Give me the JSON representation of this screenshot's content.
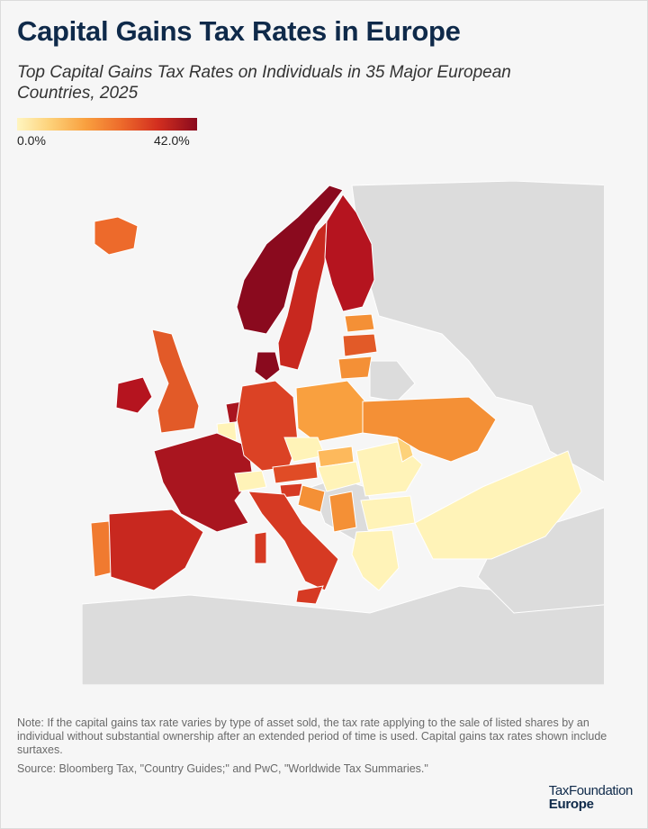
{
  "header": {
    "title": "Capital Gains Tax Rates in Europe",
    "subtitle": "Top Capital Gains Tax Rates on Individuals in 35 Major European Countries, 2025"
  },
  "legend": {
    "min_label": "0.0%",
    "max_label": "42.0%",
    "min_value": 0.0,
    "max_value": 42.0,
    "colors": [
      "#fff5c0",
      "#fdd27a",
      "#f9a03f",
      "#ed6a2b",
      "#d32f1f",
      "#8a0a1e"
    ],
    "no_data_color": "#dcdcdc"
  },
  "map": {
    "colors": {
      "iceland": "#ed6a2b",
      "norway": "#8a0a1e",
      "sweden": "#c8281f",
      "finland": "#b5141f",
      "denmark": "#8a0a1e",
      "ireland": "#b5141f",
      "united_kingdom": "#e25a28",
      "portugal": "#f07a30",
      "spain": "#c8281f",
      "france": "#a9151f",
      "germany": "#db4225",
      "poland": "#f9a03f",
      "italy": "#d63a23",
      "czechia": "#fff3b8",
      "romania": "#fff3b8",
      "bulgaria": "#fff3b8",
      "greece": "#fff3b8",
      "turkey": "#fff3b8",
      "ukraine": "#f49036",
      "hungary": "#fff3b8",
      "austria": "#e04c26",
      "switzerland": "#fff3b8",
      "belgium": "#fff3b8",
      "netherlands": "#a9151f",
      "estonia": "#f49036",
      "latvia": "#e25a28",
      "lithuania": "#f49036",
      "croatia": "#f49036",
      "slovenia": "#d63a23",
      "slovakia": "#fdb95c",
      "serbia": "#f49036",
      "moldova": "#fdd27a",
      "no_data": "#dcdcdc"
    }
  },
  "footer": {
    "note": "Note: If the capital gains tax rate varies by type of asset sold, the tax rate applying to the sale of listed shares by an individual without substantial ownership after an extended period of time is used. Capital gains tax rates shown include surtaxes.",
    "source": "Source: Bloomberg Tax, \"Country Guides;\" and PwC, \"Worldwide Tax Summaries.\"",
    "brand_top": "TaxFoundation",
    "brand_bottom": "Europe"
  }
}
